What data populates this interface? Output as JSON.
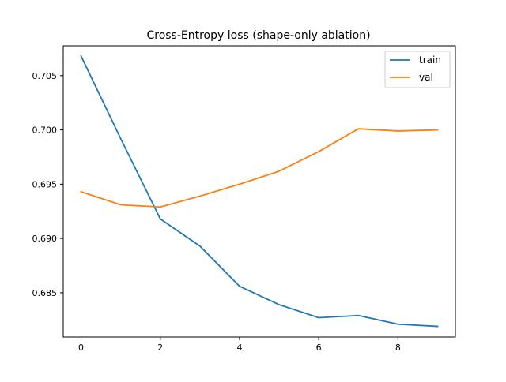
{
  "chart_data": {
    "type": "line",
    "title": "Cross-Entropy loss (shape-only ablation)",
    "xlabel": "",
    "ylabel": "",
    "x": [
      0,
      1,
      2,
      3,
      4,
      5,
      6,
      7,
      8,
      9
    ],
    "xlim": [
      -0.45,
      9.45
    ],
    "ylim": [
      0.68092,
      0.70775
    ],
    "xticks": [
      0,
      2,
      4,
      6,
      8
    ],
    "yticks": [
      0.685,
      0.69,
      0.695,
      0.7,
      0.705
    ],
    "xtick_labels": [
      "0",
      "2",
      "4",
      "6",
      "8"
    ],
    "ytick_labels": [
      "0.685",
      "0.690",
      "0.695",
      "0.700",
      "0.705"
    ],
    "grid": false,
    "legend_position": "upper right",
    "series": [
      {
        "name": "train",
        "color": "#1f77b4",
        "values": [
          0.7068,
          0.6992,
          0.6918,
          0.6893,
          0.6856,
          0.6839,
          0.6827,
          0.6829,
          0.6821,
          0.6819
        ]
      },
      {
        "name": "val",
        "color": "#ff7f0e",
        "values": [
          0.6943,
          0.6931,
          0.6929,
          0.6939,
          0.695,
          0.6962,
          0.698,
          0.7001,
          0.6999,
          0.7
        ]
      }
    ]
  }
}
